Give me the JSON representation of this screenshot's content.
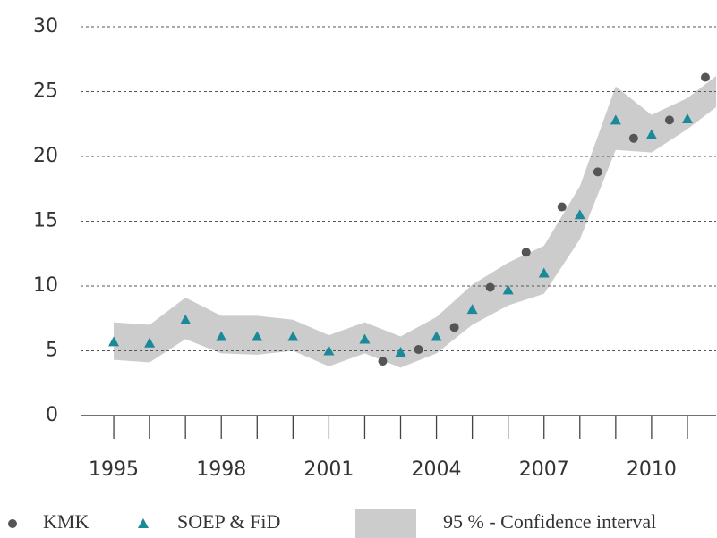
{
  "chart_data": {
    "type": "scatter",
    "xlim": [
      1994,
      2011.8
    ],
    "ylim": [
      0,
      30
    ],
    "xticks": [
      1995,
      1998,
      2001,
      2004,
      2007,
      2010
    ],
    "xminorticks": [
      1995,
      1996,
      1997,
      1998,
      1999,
      2000,
      2001,
      2002,
      2003,
      2004,
      2005,
      2006,
      2007,
      2008,
      2009,
      2010,
      2011
    ],
    "yticks": [
      0,
      5,
      10,
      15,
      20,
      25,
      30
    ],
    "grid": true,
    "legend": "bottom",
    "band": {
      "name": "95 % - Confidence interval",
      "color": "#cccccc",
      "x": [
        1995,
        1996,
        1997,
        1998,
        1999,
        2000,
        2001,
        2002,
        2003,
        2004,
        2005,
        2006,
        2007,
        2008,
        2009,
        2010,
        2011,
        2011.8
      ],
      "upper": [
        7.2,
        7.0,
        9.1,
        7.7,
        7.7,
        7.4,
        6.2,
        7.2,
        6.1,
        7.6,
        10.1,
        11.8,
        13.1,
        17.7,
        25.4,
        23.2,
        24.5,
        26.2
      ],
      "lower": [
        4.3,
        4.1,
        5.9,
        4.8,
        4.7,
        5.0,
        3.8,
        4.8,
        3.7,
        4.8,
        7.0,
        8.5,
        9.4,
        13.6,
        20.5,
        20.3,
        22.1,
        23.8
      ]
    },
    "series": [
      {
        "name": "KMK",
        "color": "#555555",
        "marker": "circle",
        "x": [
          2002.5,
          2003.5,
          2004.5,
          2005.5,
          2006.5,
          2007.5,
          2008.5,
          2009.5,
          2010.5,
          2011.5
        ],
        "values": [
          4.2,
          5.1,
          6.8,
          9.9,
          12.6,
          16.1,
          18.8,
          21.4,
          22.8,
          26.1
        ]
      },
      {
        "name": "SOEP & FiD",
        "color": "#1a8a9a",
        "marker": "triangle",
        "x": [
          1995,
          1996,
          1997,
          1998,
          1999,
          2000,
          2001,
          2002,
          2003,
          2004,
          2005,
          2006,
          2007,
          2008,
          2009,
          2010,
          2011
        ],
        "values": [
          5.7,
          5.6,
          7.4,
          6.1,
          6.1,
          6.1,
          5.0,
          5.9,
          4.9,
          6.1,
          8.2,
          9.7,
          11.0,
          15.5,
          22.8,
          21.7,
          22.9
        ]
      }
    ]
  }
}
